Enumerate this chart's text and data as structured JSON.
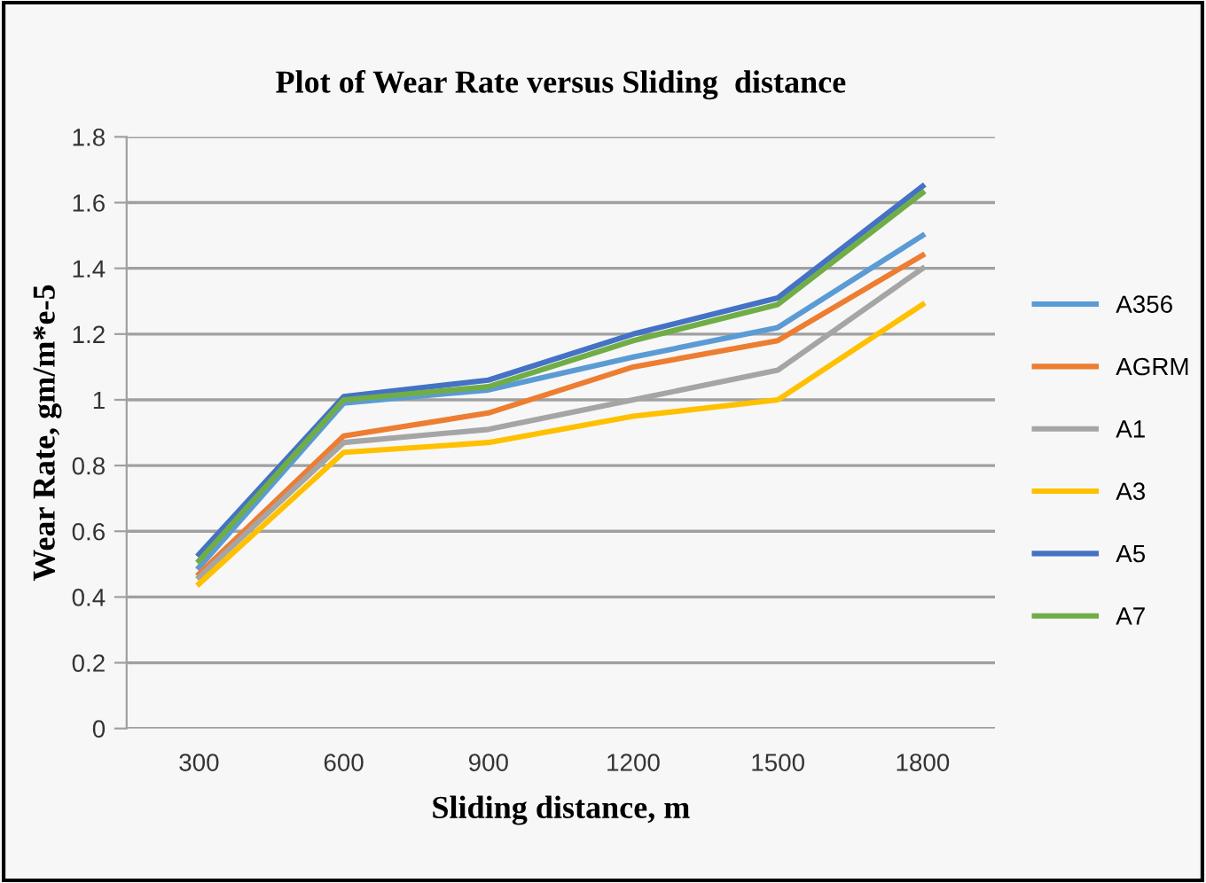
{
  "chart_data": {
    "type": "line",
    "title": "Plot of Wear Rate versus Sliding  distance",
    "xlabel": "Sliding distance, m",
    "ylabel": "Wear Rate, gm/m*e-5",
    "categories": [
      "300",
      "600",
      "900",
      "1200",
      "1500",
      "1800"
    ],
    "series": [
      {
        "name": "A356",
        "color": "#5b9bd5",
        "values": [
          0.49,
          0.99,
          1.03,
          1.13,
          1.22,
          1.5
        ]
      },
      {
        "name": "AGRM",
        "color": "#ed7d31",
        "values": [
          0.47,
          0.89,
          0.96,
          1.1,
          1.18,
          1.44
        ]
      },
      {
        "name": "A1",
        "color": "#a5a5a5",
        "values": [
          0.46,
          0.87,
          0.91,
          1.0,
          1.09,
          1.4
        ]
      },
      {
        "name": "A3",
        "color": "#ffc000",
        "values": [
          0.44,
          0.84,
          0.87,
          0.95,
          1.0,
          1.29
        ]
      },
      {
        "name": "A5",
        "color": "#4472c4",
        "values": [
          0.53,
          1.01,
          1.06,
          1.2,
          1.31,
          1.65
        ]
      },
      {
        "name": "A7",
        "color": "#70ad47",
        "values": [
          0.51,
          1.0,
          1.04,
          1.18,
          1.29,
          1.63
        ]
      }
    ],
    "ylim": [
      0,
      1.8
    ],
    "yticks": [
      0,
      {
        "value": 0.2,
        "label": "0.2"
      },
      {
        "value": 0.4,
        "label": "0.4"
      },
      {
        "value": 0.6,
        "label": "0.6"
      },
      {
        "value": 0.8,
        "label": "0.8"
      },
      1,
      {
        "value": 1.2,
        "label": "1.2"
      },
      {
        "value": 1.4,
        "label": "1.4"
      },
      {
        "value": 1.6,
        "label": "1.6"
      },
      {
        "value": 1.8,
        "label": "1.8"
      }
    ],
    "grid": "y",
    "legend": "right",
    "marker": "none",
    "line_style": "solid"
  }
}
